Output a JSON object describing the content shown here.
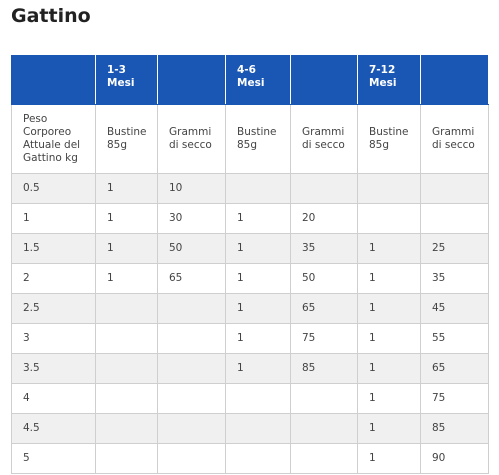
{
  "header": {
    "title": "Gattino"
  },
  "table": {
    "groups": [
      null,
      "1-3 Mesi",
      null,
      "4-6 Mesi",
      null,
      "7-12 Mesi",
      null
    ],
    "columns": [
      "Peso Corporeo Attuale del Gattino kg",
      "Bustine 85g",
      "Grammi di secco",
      "Bustine 85g",
      "Grammi di secco",
      "Bustine 85g",
      "Grammi di secco"
    ],
    "rows": [
      [
        "0.5",
        "1",
        "10",
        null,
        null,
        null,
        null
      ],
      [
        "1",
        "1",
        "30",
        "1",
        "20",
        null,
        null
      ],
      [
        "1.5",
        "1",
        "50",
        "1",
        "35",
        "1",
        "25"
      ],
      [
        "2",
        "1",
        "65",
        "1",
        "50",
        "1",
        "35"
      ],
      [
        "2.5",
        null,
        null,
        "1",
        "65",
        "1",
        "45"
      ],
      [
        "3",
        null,
        null,
        "1",
        "75",
        "1",
        "55"
      ],
      [
        "3.5",
        null,
        null,
        "1",
        "85",
        "1",
        "65"
      ],
      [
        "4",
        null,
        null,
        null,
        null,
        "1",
        "75"
      ],
      [
        "4.5",
        null,
        null,
        null,
        null,
        "1",
        "85"
      ],
      [
        "5",
        null,
        null,
        null,
        null,
        "1",
        "90"
      ]
    ]
  }
}
